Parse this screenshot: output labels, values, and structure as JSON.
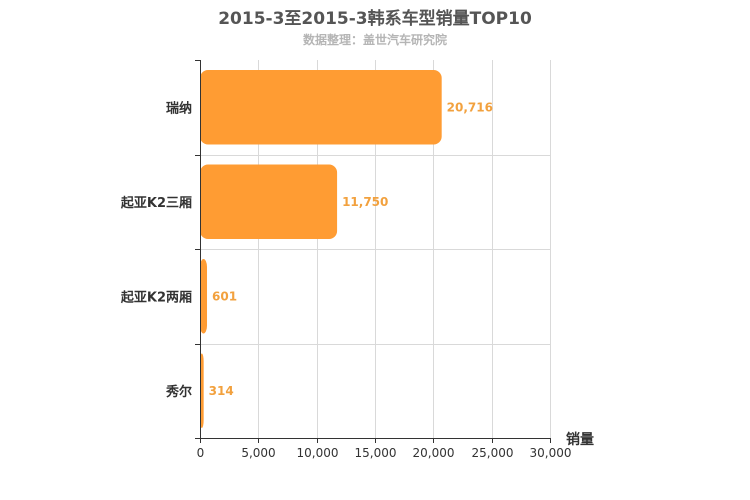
{
  "title": "2015-3至2015-3韩系车型销量TOP10",
  "subtitle": "数据整理：盖世汽车研究院",
  "chart_data": {
    "type": "bar",
    "orientation": "horizontal",
    "categories": [
      "瑞纳",
      "起亚K2三厢",
      "起亚K2两厢",
      "秀尔"
    ],
    "values": [
      20716,
      11750,
      601,
      314
    ],
    "value_labels": [
      "20,716",
      "11,750",
      "601",
      "314"
    ],
    "xlabel": "销量",
    "ylabel": "",
    "xlim": [
      0,
      30000
    ],
    "xticks": [
      0,
      5000,
      10000,
      15000,
      20000,
      25000,
      30000
    ],
    "xtick_labels": [
      "0",
      "5,000",
      "10,000",
      "15,000",
      "20,000",
      "25,000",
      "30,000"
    ],
    "grid": true,
    "colors": {
      "bar": "#ff9c33",
      "bar_label": "#f2a13e",
      "grid": "#d9d9d9",
      "axis": "#333333"
    }
  }
}
